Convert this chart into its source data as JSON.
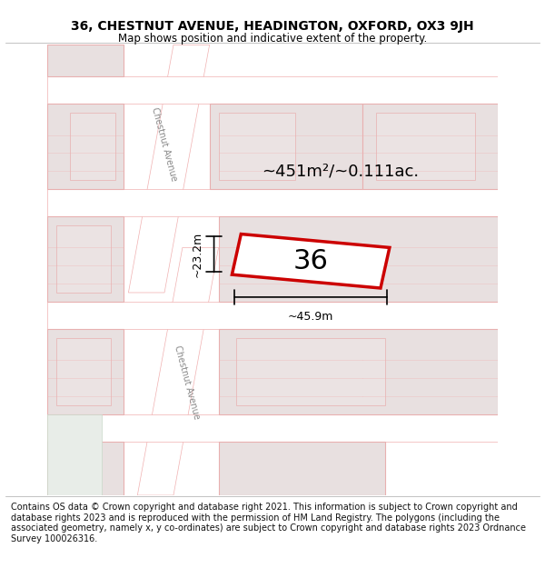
{
  "title_line1": "36, CHESTNUT AVENUE, HEADINGTON, OXFORD, OX3 9JH",
  "title_line2": "Map shows position and indicative extent of the property.",
  "footer_text": "Contains OS data © Crown copyright and database right 2021. This information is subject to Crown copyright and database rights 2023 and is reproduced with the permission of HM Land Registry. The polygons (including the associated geometry, namely x, y co-ordinates) are subject to Crown copyright and database rights 2023 Ordnance Survey 100026316.",
  "area_label": "~451m²/~0.111ac.",
  "number_label": "36",
  "width_label": "~45.9m",
  "height_label": "~23.2m",
  "background_color": "#ffffff",
  "map_background": "#f5f0f0",
  "road_color": "#ffffff",
  "block_color": "#e8e0e0",
  "highlight_color": "#cc0000",
  "line_color": "#000000",
  "street_name_upper": "Chestnut Avenue",
  "street_name_lower": "Chestnut Avenue",
  "title_fontsize": 10,
  "subtitle_fontsize": 8.5,
  "footer_fontsize": 7,
  "label_fontsize": 14,
  "number_fontsize": 22
}
